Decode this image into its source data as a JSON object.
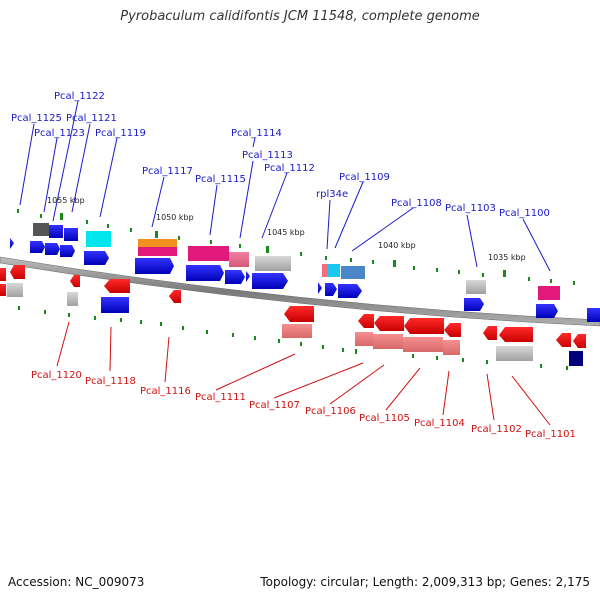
{
  "title": "Pyrobaculum calidifontis JCM 11548, complete genome",
  "accession": "Accession: NC_009073",
  "summary": "Topology: circular; Length: 2,009,313 bp; Genes: 2,175",
  "colors": {
    "forward_label": "#1a1ac8",
    "reverse_label": "#d01010",
    "forward_gene": "#0000ee",
    "reverse_gene": "#ee0000",
    "backbone": "#888888",
    "tick": "#1a8a1a"
  },
  "scale_labels": [
    "1055 kbp",
    "1050 kbp",
    "1045 kbp",
    "1040 kbp",
    "1035 kbp"
  ],
  "forward_labels": [
    "Pcal_1122",
    "Pcal_1125",
    "Pcal_1121",
    "Pcal_1123",
    "Pcal_1119",
    "Pcal_1114",
    "Pcal_1113",
    "Pcal_1117",
    "Pcal_1115",
    "Pcal_1112",
    "Pcal_1109",
    "rpl34e",
    "Pcal_1108",
    "Pcal_1103",
    "Pcal_1100"
  ],
  "reverse_labels": [
    "Pcal_1120",
    "Pcal_1118",
    "Pcal_1116",
    "Pcal_1111",
    "Pcal_1107",
    "Pcal_1106",
    "Pcal_1105",
    "Pcal_1104",
    "Pcal_1102",
    "Pcal_1101"
  ]
}
